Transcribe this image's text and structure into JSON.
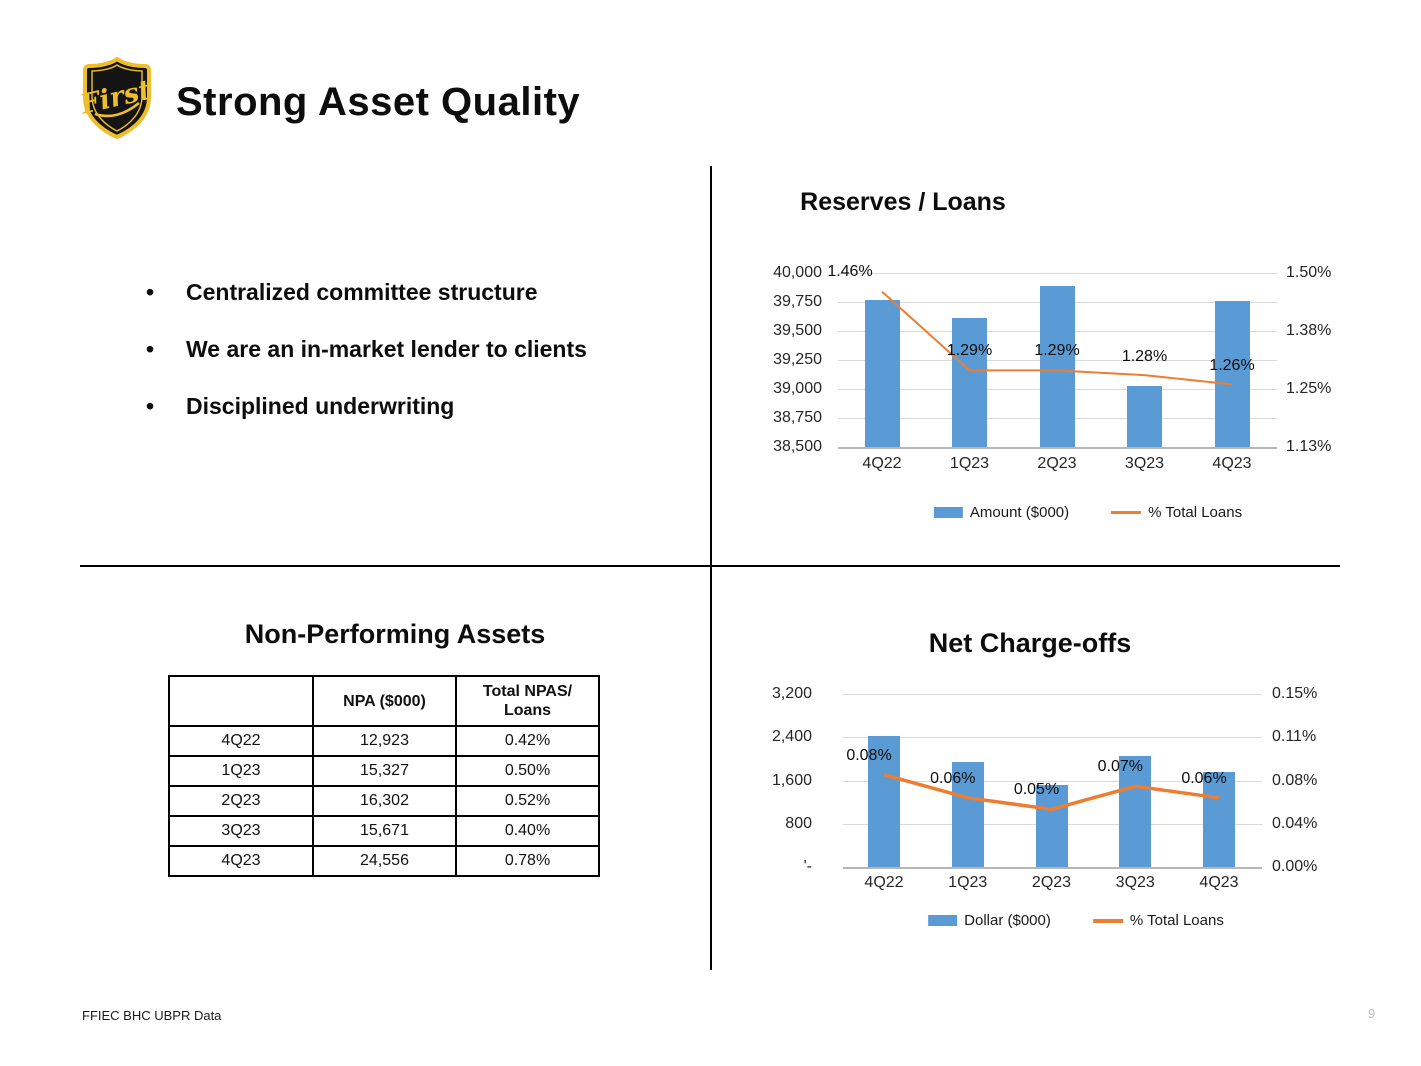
{
  "slide": {
    "logo": {
      "text": "First",
      "shield_fill": "#141414",
      "shield_gold": "#EFBE2C"
    },
    "title": "Strong Asset Quality",
    "bullets": [
      "Centralized committee structure",
      "We are an in-market lender to clients",
      "Disciplined underwriting"
    ],
    "footer": {
      "source": "FFIEC BHC UBPR Data",
      "page_number": "9"
    }
  },
  "table": {
    "title": "Non-Performing Assets",
    "headers": [
      "",
      "NPA ($000)",
      "Total NPAS/ Loans"
    ],
    "rows": [
      [
        "4Q22",
        "12,923",
        "0.42%"
      ],
      [
        "1Q23",
        "15,327",
        "0.50%"
      ],
      [
        "2Q23",
        "16,302",
        "0.52%"
      ],
      [
        "3Q23",
        "15,671",
        "0.40%"
      ],
      [
        "4Q23",
        "24,556",
        "0.78%"
      ]
    ]
  },
  "chart_data": [
    {
      "type": "bar+line",
      "title": "Reserves / Loans",
      "categories": [
        "4Q22",
        "1Q23",
        "2Q23",
        "3Q23",
        "4Q23"
      ],
      "series": [
        {
          "name": "Amount ($000)",
          "type": "bar",
          "axis": "left",
          "color": "#5B9BD5",
          "values": [
            39770,
            39610,
            39890,
            39030,
            39760
          ]
        },
        {
          "name": "% Total Loans",
          "type": "line",
          "axis": "right",
          "color": "#ED7D31",
          "values": [
            1.46,
            1.29,
            1.29,
            1.28,
            1.26
          ],
          "labels": [
            "1.46%",
            "1.29%",
            "1.29%",
            "1.28%",
            "1.26%"
          ]
        }
      ],
      "left_axis": {
        "min": 38500,
        "max": 40000,
        "ticks": [
          "40,000",
          "39,750",
          "39,500",
          "39,250",
          "39,000",
          "38,750",
          "38,500"
        ]
      },
      "right_axis": {
        "min": 1.125,
        "max": 1.5,
        "ticks": [
          "1.50%",
          "1.38%",
          "1.25%",
          "1.13%"
        ]
      },
      "legend_position": "bottom",
      "grid": true
    },
    {
      "type": "bar+line",
      "title": "Net Charge-offs",
      "categories": [
        "4Q22",
        "1Q23",
        "2Q23",
        "3Q23",
        "4Q23"
      ],
      "series": [
        {
          "name": "Dollar ($000)",
          "type": "bar",
          "axis": "left",
          "color": "#5B9BD5",
          "values": [
            2430,
            1950,
            1520,
            2060,
            1760
          ]
        },
        {
          "name": "% Total Loans",
          "type": "line",
          "axis": "right",
          "color": "#ED7D31",
          "values": [
            0.08,
            0.06,
            0.05,
            0.07,
            0.06
          ],
          "labels": [
            "0.08%",
            "0.06%",
            "0.05%",
            "0.07%",
            "0.06%"
          ]
        }
      ],
      "left_axis": {
        "min": 0,
        "max": 3200,
        "ticks": [
          "3,200",
          "2,400",
          "1,600",
          "800",
          "'-"
        ]
      },
      "right_axis": {
        "min": 0,
        "max": 0.15,
        "ticks": [
          "0.15%",
          "0.11%",
          "0.08%",
          "0.04%",
          "0.00%"
        ]
      },
      "legend_position": "bottom",
      "grid": true
    }
  ]
}
